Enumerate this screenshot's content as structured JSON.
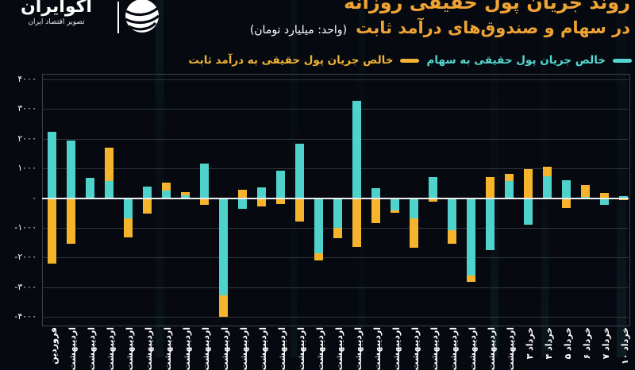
{
  "header": {
    "logo": {
      "title": "اکوایران",
      "subtitle": "تصویر اقتصاد ایران"
    },
    "title_line1": "روند جریان پول حقیقی روزانه",
    "title_line2": "در سهام و صندوق‌های درآمد ثابت",
    "unit_note": "(واحد: میلیارد تومان)"
  },
  "legend": {
    "items": [
      {
        "label": "خالص جریان پول حقیقی به سهام",
        "color": "#57d7d0"
      },
      {
        "label": "خالص جریان پول حقیقی به درآمد ثابت",
        "color": "#f2b233"
      }
    ]
  },
  "chart_data": {
    "type": "bar",
    "title": "روند جریان پول حقیقی روزانه در سهام و صندوق‌های درآمد ثابت",
    "unit": "میلیارد تومان",
    "categories": [
      "فروردین",
      "اردیبهشت",
      "اردیبهشت",
      "اردیبهشت",
      "اردیبهشت",
      "اردیبهشت",
      "اردیبهشت",
      "اردیبهشت",
      "اردیبهشت",
      "اردیبهشت",
      "اردیبهشت",
      "اردیبهشت",
      "اردیبهشت",
      "اردیبهشت",
      "اردیبهشت",
      "اردیبهشت",
      "اردیبهشت",
      "اردیبهشت",
      "اردیبهشت",
      "اردیبهشت",
      "اردیبهشت",
      "اردیبهشت",
      "اردیبهشت",
      "اردیبهشت",
      "اردیبهشت",
      "خرداد ۳",
      "خرداد ۴",
      "خرداد ۵",
      "خرداد ۶",
      "خرداد ۷",
      "خرداد ۱۰"
    ],
    "series": [
      {
        "name": "خالص جریان پول حقیقی به سهام",
        "color": "#4fd2cb",
        "values": [
          2230,
          1930,
          670,
          580,
          -670,
          400,
          260,
          90,
          1160,
          -3270,
          -360,
          360,
          910,
          1820,
          -1855,
          -990,
          3270,
          330,
          -405,
          -670,
          720,
          -1075,
          -2600,
          -1750,
          583,
          -895,
          745,
          600,
          40,
          -220,
          60
        ]
      },
      {
        "name": "خالص جریان پول حقیقی به درآمد ثابت",
        "color": "#f5b42c",
        "values": [
          -2200,
          -1540,
          150,
          1700,
          -1320,
          -520,
          510,
          200,
          -220,
          -4010,
          270,
          -290,
          -200,
          -790,
          -2105,
          -1350,
          -1640,
          -850,
          -490,
          -1660,
          -130,
          -1550,
          -2820,
          717,
          807,
          985,
          1050,
          -340,
          450,
          180,
          -80
        ]
      }
    ],
    "ylim": [
      -4000,
      4000
    ],
    "yticks": {
      "values": [
        4000,
        3000,
        2000,
        1000,
        0,
        -1000,
        -2000,
        -3000,
        -4000
      ],
      "labels": [
        "۴۰۰۰",
        "۳۰۰۰",
        "۲۰۰۰",
        "۱۰۰۰",
        "۰",
        "-۱۰۰۰",
        "-۲۰۰۰",
        "-۳۰۰۰",
        "-۴۰۰۰"
      ]
    },
    "grid": "horizontal",
    "legend_position": "top"
  }
}
